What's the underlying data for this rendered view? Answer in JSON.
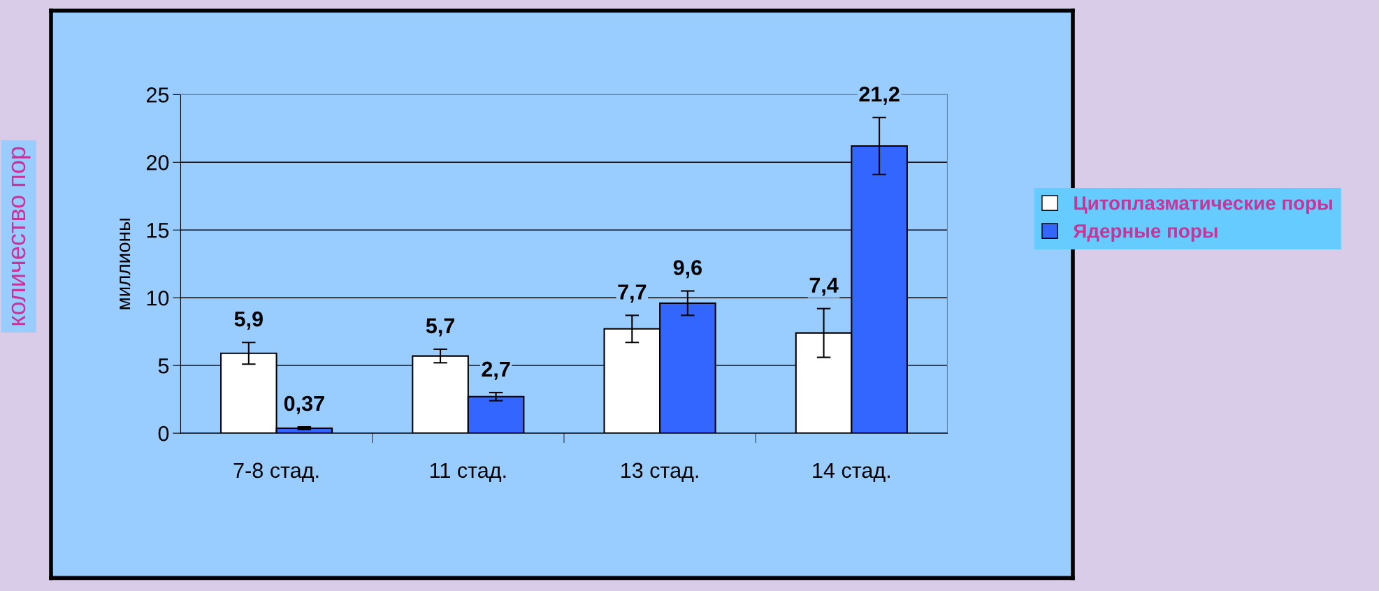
{
  "chart_data": {
    "type": "bar",
    "ylabel": "миллионы",
    "annotations": [
      "количество пор"
    ],
    "categories": [
      "7-8 стад.",
      "11 стад.",
      "13 стад.",
      "14 стад."
    ],
    "series": [
      {
        "name": "Цитоплазматические поры",
        "color": "#ffffff",
        "values": [
          5.9,
          5.7,
          7.7,
          7.4
        ],
        "errors": [
          0.8,
          0.5,
          1.0,
          1.8
        ],
        "value_labels": [
          "5,9",
          "5,7",
          "7,7",
          "7,4"
        ]
      },
      {
        "name": "Ядерные поры",
        "color": "#3366ff",
        "values": [
          0.37,
          2.7,
          9.6,
          21.2
        ],
        "errors": [
          0.1,
          0.3,
          0.9,
          2.1
        ],
        "value_labels": [
          "0,37",
          "2,7",
          "9,6",
          "21,2"
        ]
      }
    ],
    "ylim": [
      0,
      25
    ],
    "yticks": [
      0,
      5,
      10,
      15,
      20,
      25
    ],
    "grid": "y",
    "legend": "right"
  }
}
